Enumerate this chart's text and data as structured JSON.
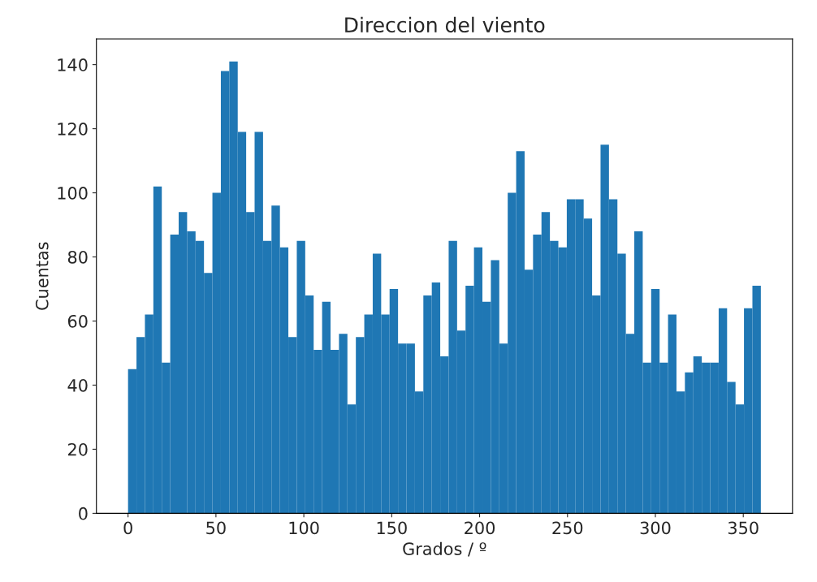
{
  "chart_data": {
    "type": "histogram",
    "title": "Direccion del viento",
    "xlabel": "Grados / º",
    "ylabel": "Cuentas",
    "color": "#1f77b4",
    "bins": [
      0,
      4.8,
      9.6,
      14.4,
      19.2,
      24,
      28.8,
      33.6,
      38.4,
      43.2,
      48,
      52.8,
      57.6,
      62.4,
      67.2,
      72,
      76.8,
      81.6,
      86.4,
      91.2,
      96,
      100.8,
      105.6,
      110.4,
      115.2,
      120,
      124.8,
      129.6,
      134.4,
      139.2,
      144,
      148.8,
      153.6,
      158.4,
      163.2,
      168,
      172.8,
      177.6,
      182.4,
      187.2,
      192,
      196.8,
      201.6,
      206.4,
      211.2,
      216,
      220.8,
      225.6,
      230.4,
      235.2,
      240,
      244.8,
      249.6,
      254.4,
      259.2,
      264,
      268.8,
      273.6,
      278.4,
      283.2,
      288,
      292.8,
      297.6,
      302.4,
      307.2,
      312,
      316.8,
      321.6,
      326.4,
      331.2,
      336,
      340.8,
      345.6,
      350.4,
      355.2,
      360
    ],
    "values": [
      45,
      55,
      62,
      102,
      47,
      87,
      94,
      88,
      85,
      75,
      100,
      138,
      141,
      119,
      94,
      119,
      85,
      96,
      83,
      55,
      85,
      68,
      51,
      66,
      51,
      56,
      34,
      55,
      62,
      81,
      62,
      70,
      53,
      53,
      38,
      68,
      72,
      49,
      85,
      57,
      71,
      83,
      66,
      79,
      53,
      100,
      113,
      76,
      87,
      94,
      85,
      83,
      98,
      98,
      92,
      68,
      115,
      98,
      81,
      56,
      88,
      47,
      70,
      47,
      62,
      38,
      44,
      49,
      47,
      47,
      64,
      41,
      34,
      64,
      71
    ],
    "xlim": [
      -18,
      378
    ],
    "ylim": [
      0,
      148
    ],
    "xticks": [
      0,
      50,
      100,
      150,
      200,
      250,
      300,
      350
    ],
    "yticks": [
      0,
      20,
      40,
      60,
      80,
      100,
      120,
      140
    ],
    "grid": false
  }
}
